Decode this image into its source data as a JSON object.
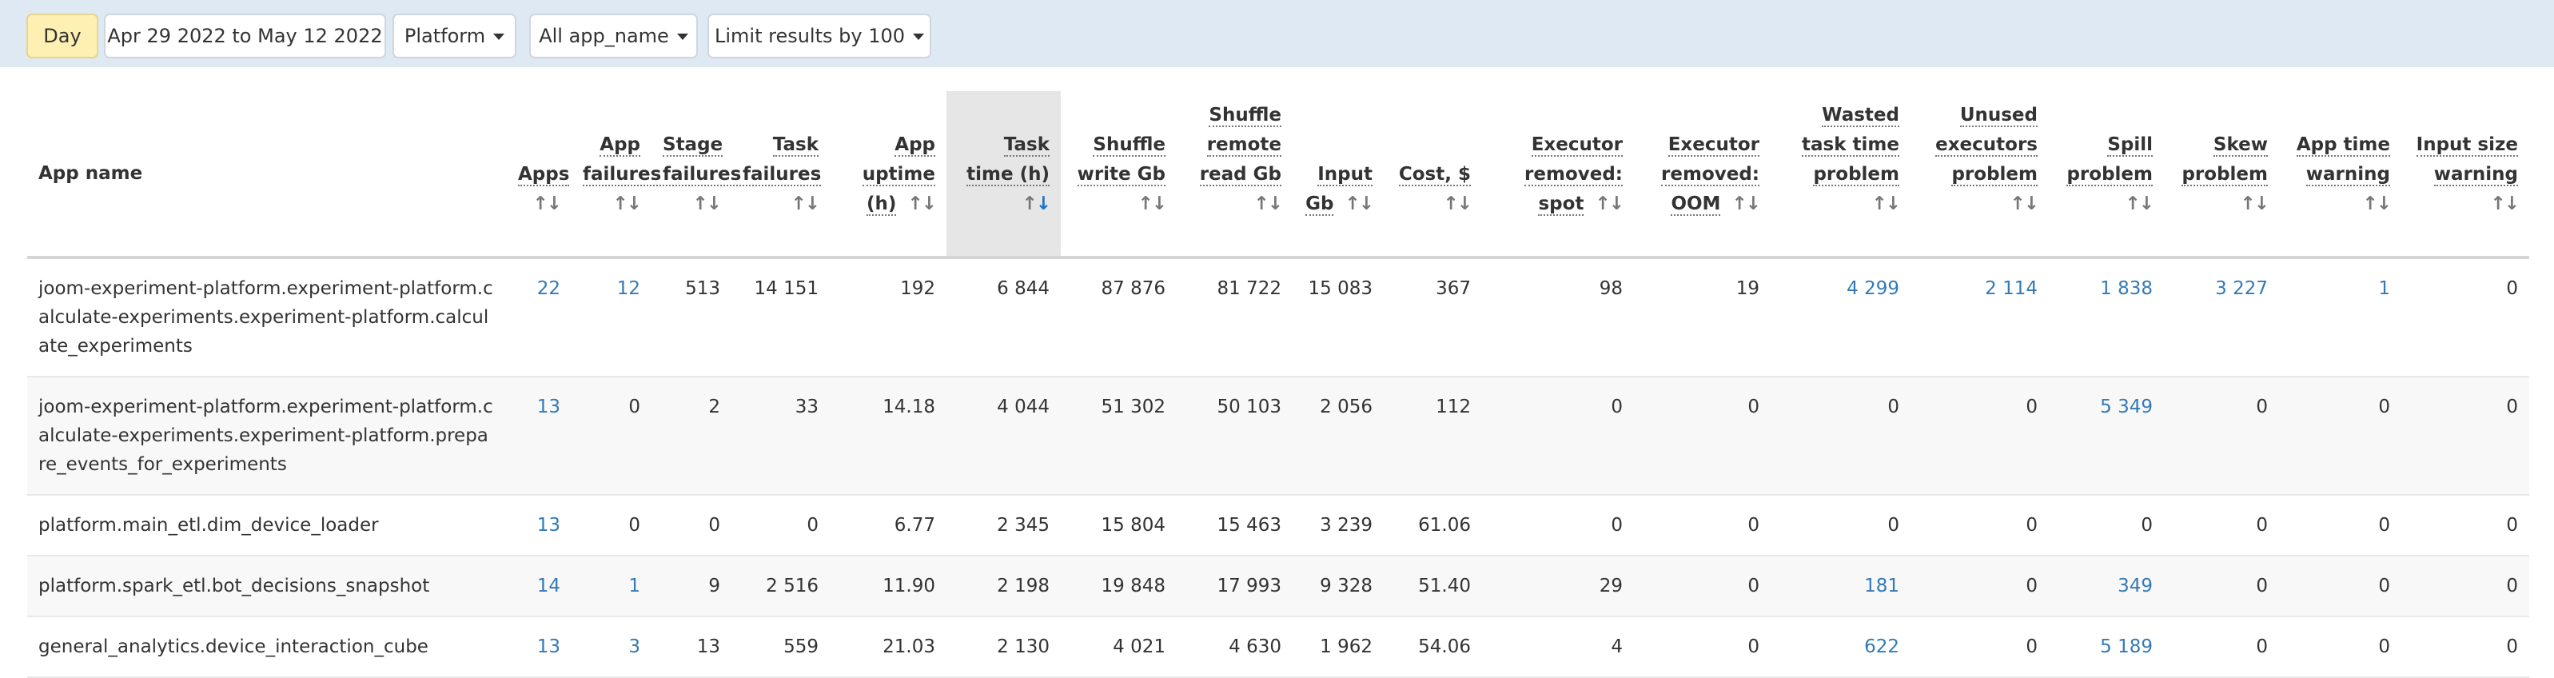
{
  "toolbar": {
    "period": "Day",
    "date_range": "Apr 29 2022 to May 12 2022",
    "platform": "Platform",
    "app_filter": "All app_name",
    "limit": "Limit results by 100"
  },
  "table": {
    "headers": [
      {
        "key": "app_name",
        "label": "App name"
      },
      {
        "key": "apps",
        "label": "Apps"
      },
      {
        "key": "app_failures",
        "label": "App failures"
      },
      {
        "key": "stage_failures",
        "label": "Stage failures"
      },
      {
        "key": "task_failures",
        "label": "Task failures"
      },
      {
        "key": "app_uptime",
        "label": "App uptime (h)"
      },
      {
        "key": "task_time",
        "label": "Task time (h)"
      },
      {
        "key": "shuffle_write",
        "label": "Shuffle write Gb"
      },
      {
        "key": "shuffle_remote_read",
        "label": "Shuffle remote read Gb"
      },
      {
        "key": "input_gb",
        "label": "Input Gb"
      },
      {
        "key": "cost",
        "label": "Cost, $"
      },
      {
        "key": "exec_removed_spot",
        "label": "Executor removed: spot"
      },
      {
        "key": "exec_removed_oom",
        "label": "Executor removed: OOM"
      },
      {
        "key": "wasted_task_time",
        "label": "Wasted task time problem"
      },
      {
        "key": "unused_executors",
        "label": "Unused executors problem"
      },
      {
        "key": "spill_problem",
        "label": "Spill problem"
      },
      {
        "key": "skew_problem",
        "label": "Skew problem"
      },
      {
        "key": "app_time_warning",
        "label": "App time warning"
      },
      {
        "key": "input_size_warning",
        "label": "Input size warning"
      }
    ],
    "sort_icon": "↑↓",
    "sorted_column": "task_time",
    "sort_direction": "desc",
    "rows": [
      [
        "joom-experiment-platform.experiment-platform.calculate-experiments.experiment-platform.calculate_experiments",
        "22",
        "12",
        "513",
        "14 151",
        "192",
        "6 844",
        "87 876",
        "81 722",
        "15 083",
        "367",
        "98",
        "19",
        "4 299",
        "2 114",
        "1 838",
        "3 227",
        "1",
        "0"
      ],
      [
        "joom-experiment-platform.experiment-platform.calculate-experiments.experiment-platform.prepare_events_for_experiments",
        "13",
        "0",
        "2",
        "33",
        "14.18",
        "4 044",
        "51 302",
        "50 103",
        "2 056",
        "112",
        "0",
        "0",
        "0",
        "0",
        "5 349",
        "0",
        "0",
        "0"
      ],
      [
        "platform.main_etl.dim_device_loader",
        "13",
        "0",
        "0",
        "0",
        "6.77",
        "2 345",
        "15 804",
        "15 463",
        "3 239",
        "61.06",
        "0",
        "0",
        "0",
        "0",
        "0",
        "0",
        "0",
        "0"
      ],
      [
        "platform.spark_etl.bot_decisions_snapshot",
        "14",
        "1",
        "9",
        "2 516",
        "11.90",
        "2 198",
        "19 848",
        "17 993",
        "9 328",
        "51.40",
        "29",
        "0",
        "181",
        "0",
        "349",
        "0",
        "0",
        "0"
      ],
      [
        "general_analytics.device_interaction_cube",
        "13",
        "3",
        "13",
        "559",
        "21.03",
        "2 130",
        "4 021",
        "4 630",
        "1 962",
        "54.06",
        "4",
        "0",
        "622",
        "0",
        "5 189",
        "0",
        "0",
        "0"
      ]
    ],
    "link_cells": [
      [
        1,
        2,
        13,
        14,
        15,
        16,
        17
      ],
      [
        1,
        15
      ],
      [
        1
      ],
      [
        1,
        2,
        13,
        15
      ],
      [
        1,
        2,
        13,
        15
      ]
    ]
  },
  "colors": {
    "toolbar_bg": "#dfe9f3",
    "active_button_bg": "#fdf0b2",
    "link": "#337ab7",
    "sorted_header_bg": "#e6e6e6",
    "sort_active": "#1a73c8"
  }
}
